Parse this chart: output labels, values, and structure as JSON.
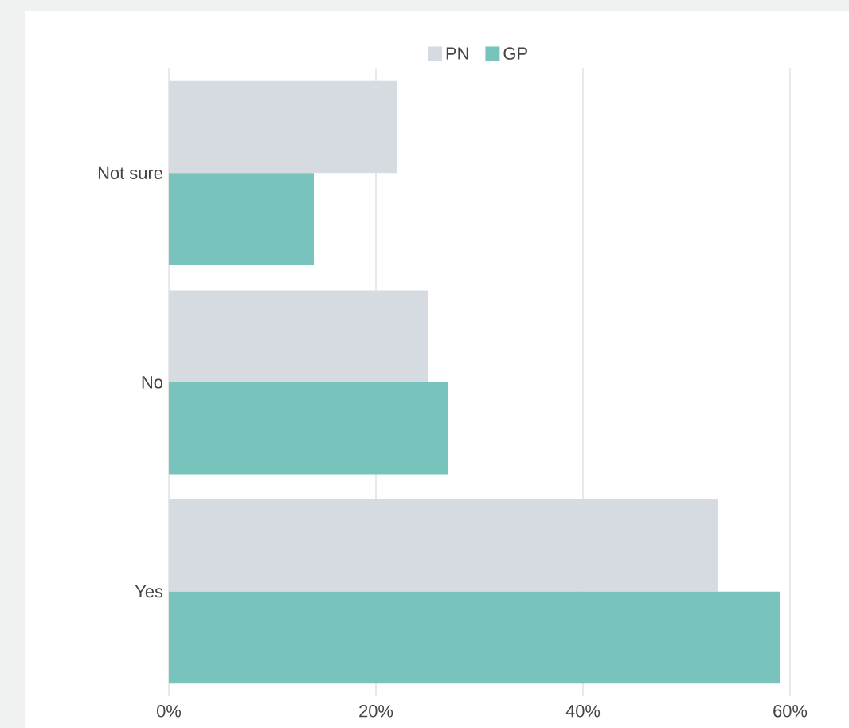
{
  "chart_data": {
    "type": "bar",
    "orientation": "horizontal",
    "categories": [
      "Not sure",
      "No",
      "Yes"
    ],
    "series": [
      {
        "name": "PN",
        "color": "#d6dae1",
        "values": [
          22,
          25,
          53
        ]
      },
      {
        "name": "GP",
        "color": "#78c4bc",
        "values": [
          14,
          27,
          59
        ]
      }
    ],
    "xlim": [
      0,
      60
    ],
    "xticks": [
      {
        "value": 0,
        "label": "0%"
      },
      {
        "value": 20,
        "label": "20%"
      },
      {
        "value": 40,
        "label": "40%"
      },
      {
        "value": 60,
        "label": "60%"
      }
    ],
    "grid": "x",
    "legend": "top"
  }
}
